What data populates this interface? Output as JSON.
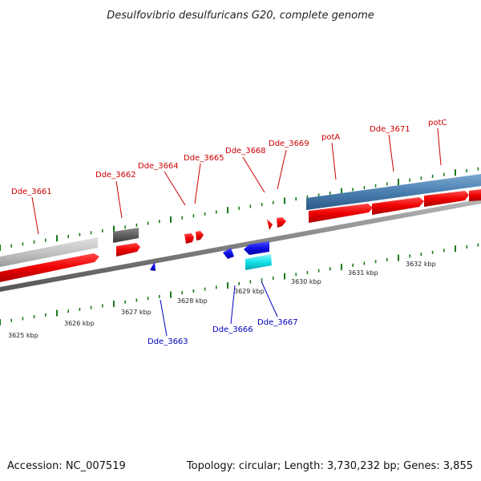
{
  "title": "Desulfovibrio desulfuricans G20, complete genome",
  "footer": {
    "accession": "Accession: NC_007519",
    "summary": "Topology: circular; Length: 3,730,232 bp; Genes: 3,855"
  },
  "colors": {
    "forward_gene": "#e8000c",
    "reverse_gene": "#1010e0",
    "forward_label": "#cc0000",
    "reverse_label": "#0000bb",
    "ruler_tick": "#1a7a1a",
    "backbone": "#808080",
    "operon_light_blue": "#4a7fb0",
    "feature_gray": "#c4c4c4",
    "feature_dark_gray": "#606060",
    "feature_cyan": "#12e0e8"
  },
  "ruler": {
    "unit": "kbp",
    "labels": [
      "3625 kbp",
      "3626 kbp",
      "3627 kbp",
      "3628 kbp",
      "3629 kbp",
      "3630 kbp",
      "3631 kbp",
      "3632 kbp"
    ]
  },
  "forward_labels": [
    "Dde_3661",
    "Dde_3662",
    "Dde_3664",
    "Dde_3665",
    "Dde_3668",
    "Dde_3669",
    "potA",
    "Dde_3671",
    "potC"
  ],
  "reverse_labels": [
    "Dde_3663",
    "Dde_3666",
    "Dde_3667"
  ]
}
